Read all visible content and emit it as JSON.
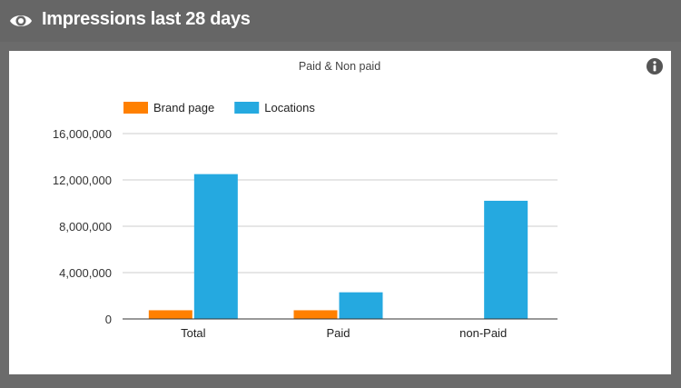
{
  "header": {
    "title": "Impressions last 28 days",
    "icon": "eye-icon"
  },
  "card": {
    "info_icon": "info-icon"
  },
  "chart_data": {
    "type": "bar",
    "title": "Paid & Non paid",
    "categories": [
      "Total",
      "Paid",
      "non-Paid"
    ],
    "series": [
      {
        "name": "Brand page",
        "color": "#ff8000",
        "values": [
          750000,
          750000,
          0
        ]
      },
      {
        "name": "Locations",
        "color": "#25a9e0",
        "values": [
          12500000,
          2300000,
          10200000
        ]
      }
    ],
    "ylim": [
      0,
      16000000
    ],
    "yticks": [
      0,
      4000000,
      8000000,
      12000000,
      16000000
    ],
    "ytick_labels": [
      "0",
      "4,000,000",
      "8,000,000",
      "12,000,000",
      "16,000,000"
    ],
    "grid": true,
    "legend": "top-left",
    "xlabel": "",
    "ylabel": ""
  }
}
